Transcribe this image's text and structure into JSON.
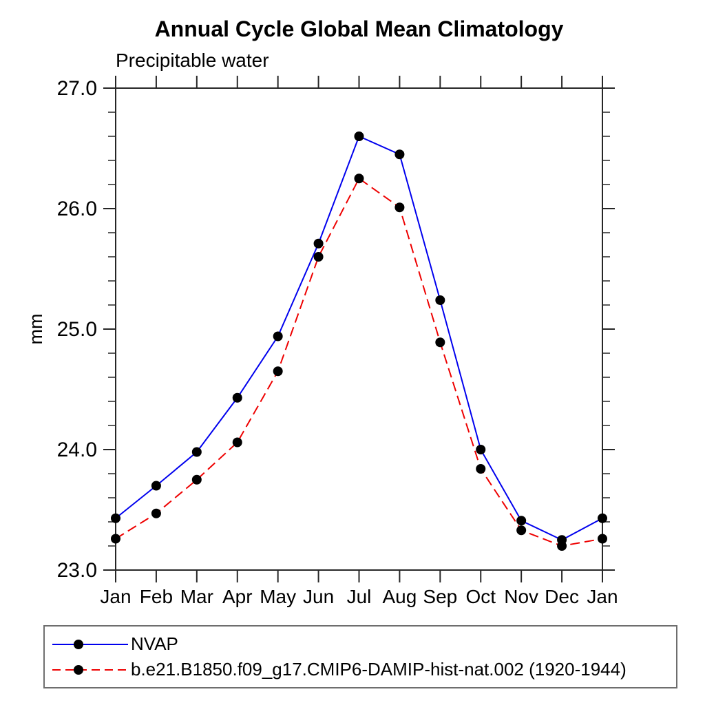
{
  "title": "Annual Cycle Global Mean Climatology",
  "subtitle": "Precipitable water",
  "y_axis_label": "mm",
  "colors": {
    "nvap_line": "#0000ee",
    "model_line": "#ee0000",
    "marker": "#000000",
    "axis": "#262626",
    "legend_border": "#6e6e6e"
  },
  "legend": {
    "position": "bottom",
    "entries": [
      {
        "label": "NVAP",
        "style": "solid"
      },
      {
        "label": "b.e21.B1850.f09_g17.CMIP6-DAMIP-hist-nat.002 (1920-1944)",
        "style": "dashed"
      }
    ]
  },
  "chart_data": {
    "type": "line",
    "title": "Annual Cycle Global Mean Climatology",
    "subtitle": "Precipitable water",
    "xlabel": "",
    "ylabel": "mm",
    "categories": [
      "Jan",
      "Feb",
      "Mar",
      "Apr",
      "May",
      "Jun",
      "Jul",
      "Aug",
      "Sep",
      "Oct",
      "Nov",
      "Dec",
      "Jan"
    ],
    "ylim": [
      23.0,
      27.0
    ],
    "yticks_major": [
      23.0,
      24.0,
      25.0,
      26.0,
      27.0
    ],
    "ytick_labels": [
      "23.0",
      "24.0",
      "25.0",
      "26.0",
      "27.0"
    ],
    "ytick_minor_step": 0.2,
    "grid": false,
    "legend_position": "bottom",
    "series": [
      {
        "name": "NVAP",
        "color": "#0000ee",
        "style": "solid",
        "marker": "circle",
        "values": [
          23.43,
          23.7,
          23.98,
          24.43,
          24.94,
          25.71,
          26.6,
          26.45,
          25.24,
          24.0,
          23.41,
          23.25,
          23.43
        ]
      },
      {
        "name": "b.e21.B1850.f09_g17.CMIP6-DAMIP-hist-nat.002 (1920-1944)",
        "color": "#ee0000",
        "style": "dashed",
        "marker": "circle",
        "values": [
          23.26,
          23.47,
          23.75,
          24.06,
          24.65,
          25.6,
          26.25,
          26.01,
          24.89,
          23.84,
          23.33,
          23.2,
          23.26
        ]
      }
    ]
  }
}
